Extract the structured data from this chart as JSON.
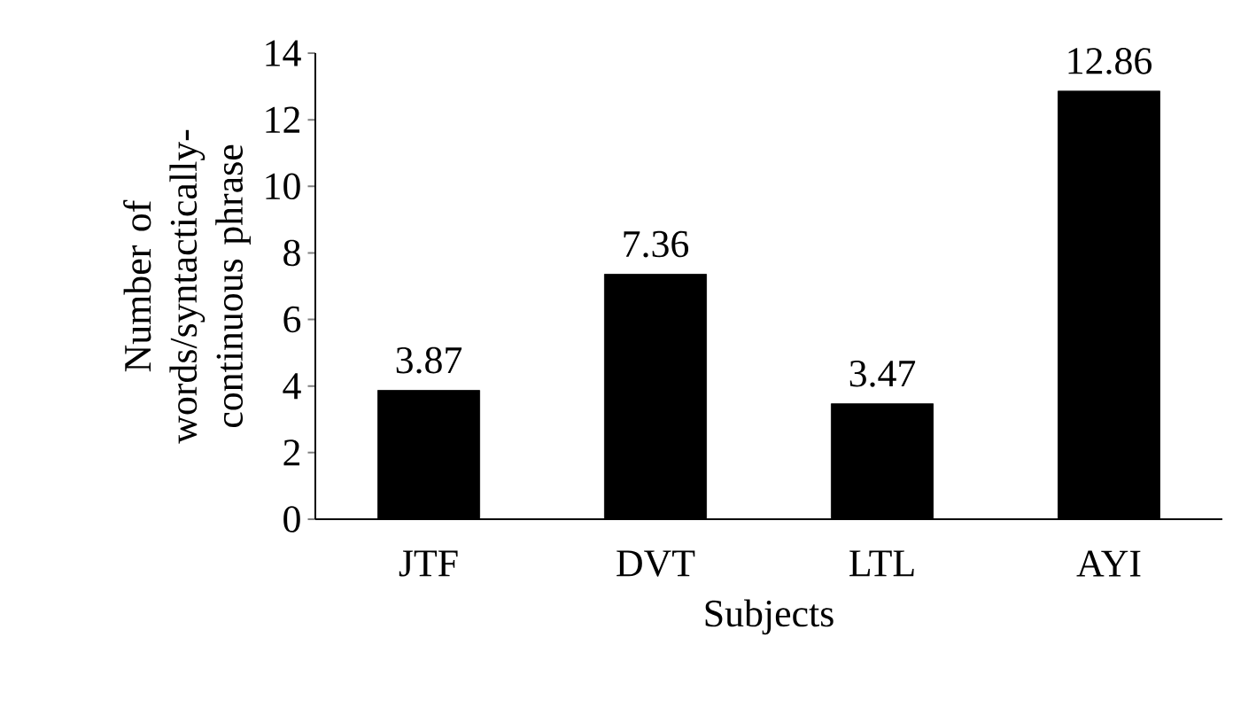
{
  "chart_data": {
    "type": "bar",
    "xlabel": "Subjects",
    "ylabel": "Number of words/syntactically-continuous phrase",
    "categories": [
      "JTF",
      "DVT",
      "LTL",
      "AYI"
    ],
    "values": [
      3.87,
      7.36,
      3.47,
      12.86
    ],
    "color": "#000000",
    "ylim": [
      0,
      14
    ],
    "yticks": [
      0,
      2,
      4,
      6,
      8,
      10,
      12,
      14
    ],
    "data_labels": true
  }
}
